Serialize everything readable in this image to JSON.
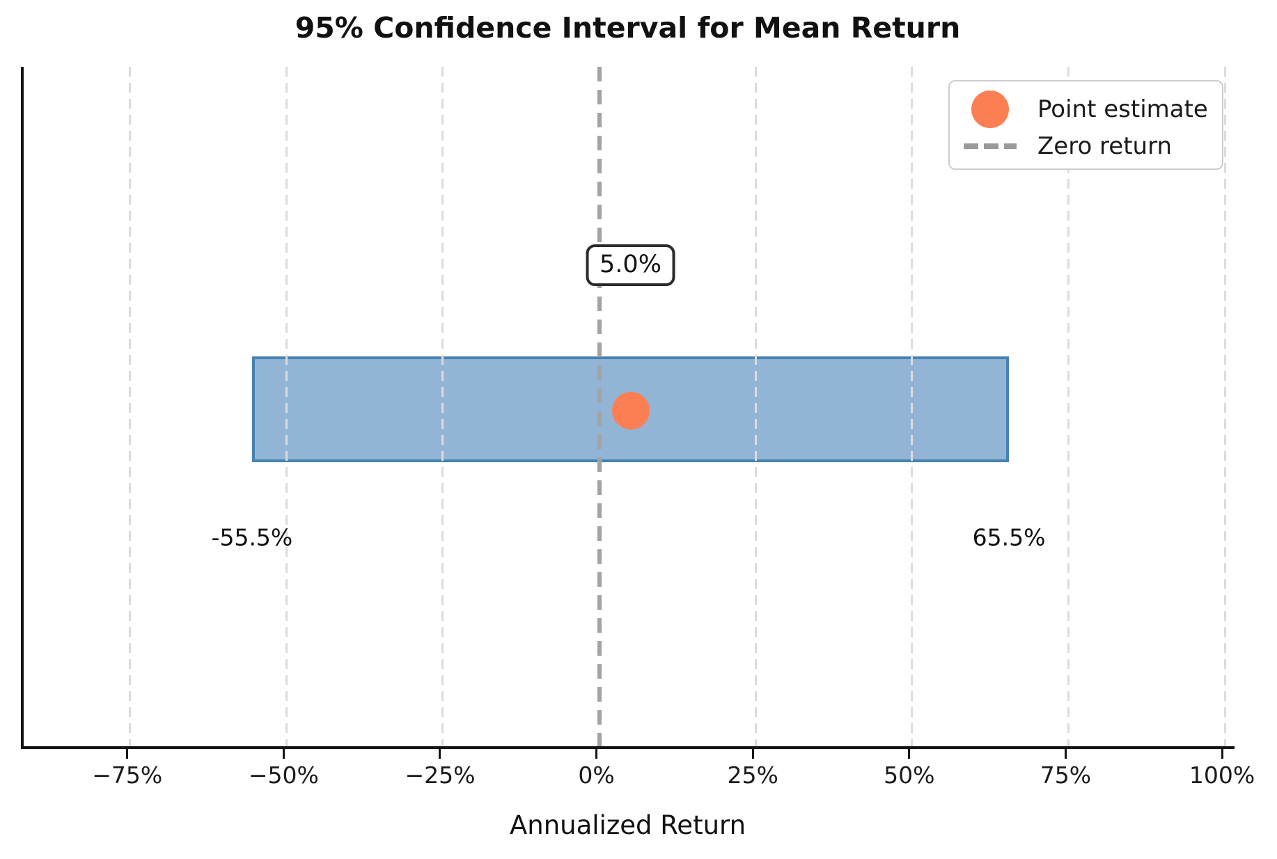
{
  "chart_data": {
    "type": "bar",
    "variant": "horizontal-confidence-interval",
    "title": "95% Confidence Interval for Mean Return",
    "xlabel": "Annualized Return",
    "x_ticks": [
      -75,
      -50,
      -25,
      0,
      25,
      50,
      75,
      100
    ],
    "x_tick_labels": [
      "−75%",
      "−50%",
      "−25%",
      "0%",
      "25%",
      "50%",
      "75%",
      "100%"
    ],
    "xlim": [
      -92,
      102
    ],
    "ci_low": -55.5,
    "ci_high": 65.5,
    "point_estimate": 5.0,
    "zero_line_x": 0,
    "ci_low_label": "-55.5%",
    "ci_high_label": "65.5%",
    "point_label": "5.0%",
    "grid": true,
    "legend_position": "upper right",
    "colors": {
      "bar_fill": "#92b5d6",
      "bar_edge": "#4682b4",
      "point": "#fc7f53",
      "zero_line": "#a3a3a3",
      "grid": "#dbdbdb"
    },
    "legend": [
      {
        "label": "Point estimate",
        "marker": "circle",
        "color": "#fc7f53"
      },
      {
        "label": "Zero return",
        "marker": "dashed-line",
        "color": "#9a9a9a"
      }
    ]
  }
}
